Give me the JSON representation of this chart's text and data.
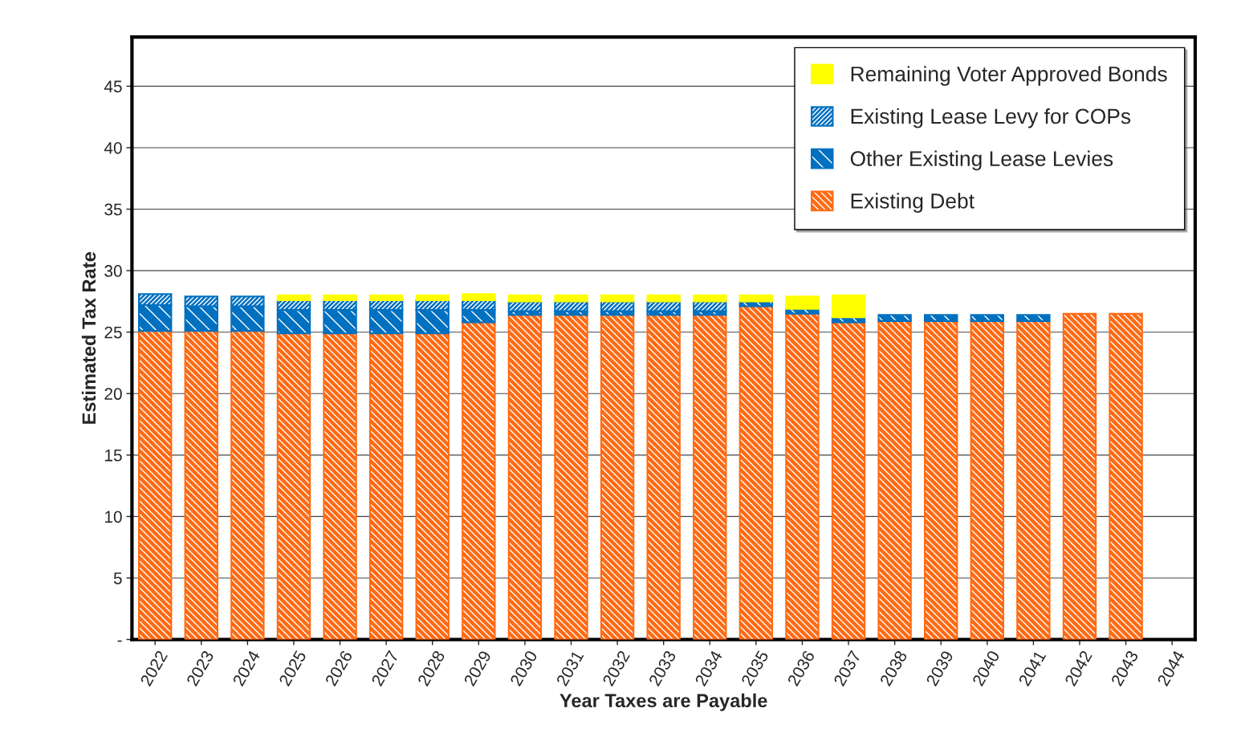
{
  "chart_data": {
    "type": "bar",
    "stacked": true,
    "xlabel": "Year Taxes are Payable",
    "ylabel": "Estimated Tax Rate",
    "categories": [
      "2022",
      "2023",
      "2024",
      "2025",
      "2026",
      "2027",
      "2028",
      "2029",
      "2030",
      "2031",
      "2032",
      "2033",
      "2034",
      "2035",
      "2036",
      "2037",
      "2038",
      "2039",
      "2040",
      "2041",
      "2042",
      "2043",
      "2044"
    ],
    "series": [
      {
        "name": "Existing Debt",
        "color": "#ff6a13",
        "values": [
          25.1,
          25.1,
          25.1,
          24.9,
          24.9,
          24.9,
          24.9,
          25.8,
          26.4,
          26.4,
          26.4,
          26.4,
          26.4,
          27.1,
          26.5,
          25.8,
          25.9,
          25.9,
          25.9,
          25.9,
          26.5,
          26.5,
          0
        ]
      },
      {
        "name": "Other Existing Lease Levies",
        "color": "#0070c0",
        "values": [
          2.1,
          2.0,
          2.0,
          1.9,
          1.9,
          1.9,
          1.9,
          1.0,
          0.3,
          0.3,
          0.3,
          0.3,
          0.3,
          0.4,
          0.4,
          0.4,
          0.5,
          0.5,
          0.5,
          0.5,
          0,
          0,
          0
        ]
      },
      {
        "name": "Existing Lease Levy for COPs",
        "color": "#0070c0",
        "values": [
          0.9,
          0.8,
          0.8,
          0.8,
          0.8,
          0.8,
          0.8,
          0.8,
          0.8,
          0.8,
          0.8,
          0.8,
          0.8,
          0,
          0,
          0,
          0,
          0,
          0,
          0,
          0,
          0,
          0
        ]
      },
      {
        "name": "Remaining Voter Approved Bonds",
        "color": "#ffff00",
        "values": [
          0,
          0,
          0,
          0.4,
          0.4,
          0.4,
          0.4,
          0.5,
          0.5,
          0.5,
          0.5,
          0.5,
          0.5,
          0.5,
          1.0,
          1.8,
          0,
          0,
          0,
          0,
          0,
          0,
          0
        ]
      }
    ],
    "ylim": [
      0,
      49
    ],
    "yticks": [
      {
        "value": 0,
        "label": "-"
      },
      5,
      10,
      15,
      20,
      25,
      30,
      35,
      40,
      45
    ],
    "grid": "y",
    "legend": "top right"
  }
}
